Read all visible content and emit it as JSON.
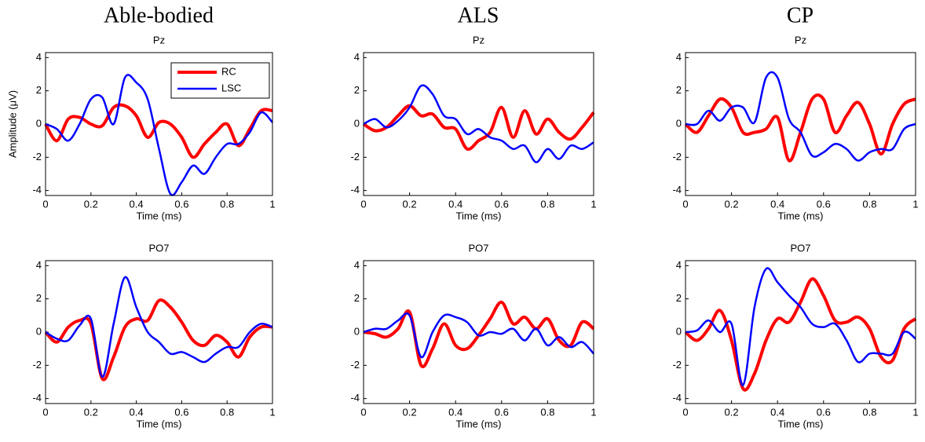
{
  "columns": [
    "Able-bodied",
    "ALS",
    "CP"
  ],
  "chart_data": [
    {
      "type": "line",
      "title": "Pz",
      "xlabel": "Time (ms)",
      "ylabel": "Amplitude (μV)",
      "legend": "upper right",
      "xlim": [
        0,
        1
      ],
      "ylim": [
        -4.3,
        4.3
      ],
      "xticks": [
        0,
        0.2,
        0.4,
        0.6,
        0.8,
        1
      ],
      "yticks": [
        -4,
        -2,
        0,
        2,
        4
      ],
      "x": [
        0,
        0.05,
        0.1,
        0.15,
        0.2,
        0.25,
        0.3,
        0.35,
        0.4,
        0.45,
        0.5,
        0.55,
        0.6,
        0.65,
        0.7,
        0.75,
        0.8,
        0.85,
        0.9,
        0.95,
        1
      ],
      "series": [
        {
          "name": "RC",
          "color": "#ff0000",
          "values": [
            0,
            -1.0,
            0.3,
            0.4,
            0,
            -0.1,
            1.0,
            1.1,
            0.5,
            -0.8,
            0.1,
            0,
            -0.8,
            -2.0,
            -1.2,
            -0.5,
            0,
            -1.3,
            -0.3,
            0.8,
            0.8
          ]
        },
        {
          "name": "LSC",
          "color": "#0000ff",
          "values": [
            0,
            -0.3,
            -1.0,
            0,
            1.5,
            1.6,
            0,
            2.8,
            2.5,
            1.5,
            -1.5,
            -4.2,
            -3.5,
            -2.5,
            -3.0,
            -2.0,
            -1.2,
            -1.2,
            -0.5,
            0.7,
            0.1
          ]
        }
      ]
    },
    {
      "type": "line",
      "title": "Pz",
      "xlabel": "Time (ms)",
      "xlim": [
        0,
        1
      ],
      "ylim": [
        -4.3,
        4.3
      ],
      "xticks": [
        0,
        0.2,
        0.4,
        0.6,
        0.8,
        1
      ],
      "yticks": [
        -4,
        -2,
        0,
        2,
        4
      ],
      "x": [
        0,
        0.05,
        0.1,
        0.15,
        0.2,
        0.25,
        0.3,
        0.35,
        0.4,
        0.45,
        0.5,
        0.55,
        0.6,
        0.65,
        0.7,
        0.75,
        0.8,
        0.85,
        0.9,
        0.95,
        1
      ],
      "series": [
        {
          "color": "#ff0000",
          "values": [
            0,
            -0.4,
            -0.2,
            0.5,
            1.1,
            0.5,
            0.6,
            -0.2,
            -0.3,
            -1.5,
            -1.0,
            -0.5,
            1.0,
            -0.8,
            0.8,
            -0.6,
            0.3,
            -0.5,
            -0.9,
            -0.2,
            0.7
          ]
        },
        {
          "color": "#0000ff",
          "values": [
            0,
            0.3,
            -0.2,
            0.2,
            1.0,
            2.3,
            1.8,
            0.5,
            0.3,
            -0.6,
            -0.3,
            -0.8,
            -1.0,
            -1.5,
            -1.3,
            -2.3,
            -1.5,
            -2.1,
            -1.3,
            -1.5,
            -1.1
          ]
        }
      ]
    },
    {
      "type": "line",
      "title": "Pz",
      "xlabel": "Time (ms)",
      "xlim": [
        0,
        1
      ],
      "ylim": [
        -4.3,
        4.3
      ],
      "xticks": [
        0,
        0.2,
        0.4,
        0.6,
        0.8,
        1
      ],
      "yticks": [
        -4,
        -2,
        0,
        2,
        4
      ],
      "x": [
        0,
        0.05,
        0.1,
        0.15,
        0.2,
        0.25,
        0.3,
        0.35,
        0.4,
        0.45,
        0.5,
        0.55,
        0.6,
        0.65,
        0.7,
        0.75,
        0.8,
        0.85,
        0.9,
        0.95,
        1
      ],
      "series": [
        {
          "color": "#ff0000",
          "values": [
            0,
            -0.5,
            0.5,
            1.5,
            1.0,
            -0.5,
            -0.5,
            -0.3,
            0.4,
            -2.2,
            -0.5,
            1.5,
            1.5,
            -0.5,
            0.5,
            1.3,
            0,
            -1.8,
            0,
            1.2,
            1.5
          ]
        },
        {
          "color": "#0000ff",
          "values": [
            0,
            0,
            0.8,
            0.2,
            1.0,
            1.0,
            0.1,
            2.8,
            2.8,
            0.3,
            -0.5,
            -1.9,
            -1.7,
            -1.2,
            -1.5,
            -2.2,
            -1.7,
            -1.5,
            -1.5,
            -0.3,
            0
          ]
        }
      ]
    },
    {
      "type": "line",
      "title": "PO7",
      "xlabel": "Time (ms)",
      "xlim": [
        0,
        1
      ],
      "ylim": [
        -4.3,
        4.3
      ],
      "xticks": [
        0,
        0.2,
        0.4,
        0.6,
        0.8,
        1
      ],
      "yticks": [
        -4,
        -2,
        0,
        2,
        4
      ],
      "x": [
        0,
        0.05,
        0.1,
        0.15,
        0.2,
        0.25,
        0.3,
        0.35,
        0.4,
        0.45,
        0.5,
        0.55,
        0.6,
        0.65,
        0.7,
        0.75,
        0.8,
        0.85,
        0.9,
        0.95,
        1
      ],
      "series": [
        {
          "color": "#ff0000",
          "values": [
            0,
            -0.6,
            0.3,
            0.7,
            0.5,
            -2.8,
            -1.5,
            0.3,
            0.8,
            0.7,
            1.9,
            1.5,
            0.6,
            -0.5,
            -0.8,
            -0.2,
            -0.6,
            -1.5,
            -0.3,
            0.3,
            0.3
          ]
        },
        {
          "color": "#0000ff",
          "values": [
            0,
            -0.4,
            -0.5,
            0.4,
            0.8,
            -2.7,
            0.5,
            3.3,
            1.5,
            0,
            -0.6,
            -1.3,
            -1.2,
            -1.5,
            -1.8,
            -1.3,
            -0.9,
            -0.9,
            0,
            0.5,
            0.3
          ]
        }
      ]
    },
    {
      "type": "line",
      "title": "PO7",
      "xlabel": "Time (ms)",
      "xlim": [
        0,
        1
      ],
      "ylim": [
        -4.3,
        4.3
      ],
      "xticks": [
        0,
        0.2,
        0.4,
        0.6,
        0.8,
        1
      ],
      "yticks": [
        -4,
        -2,
        0,
        2,
        4
      ],
      "x": [
        0,
        0.05,
        0.1,
        0.15,
        0.2,
        0.25,
        0.3,
        0.35,
        0.4,
        0.45,
        0.5,
        0.55,
        0.6,
        0.65,
        0.7,
        0.75,
        0.8,
        0.85,
        0.9,
        0.95,
        1
      ],
      "series": [
        {
          "color": "#ff0000",
          "values": [
            0,
            -0.1,
            -0.3,
            0.2,
            1.2,
            -2.0,
            -1.0,
            0.5,
            -0.8,
            -1.0,
            -0.2,
            0.8,
            1.8,
            0.5,
            0.9,
            0.2,
            0.8,
            -0.5,
            -0.8,
            0.6,
            0.2
          ]
        },
        {
          "color": "#0000ff",
          "values": [
            0,
            0.2,
            0.2,
            0.7,
            1.0,
            -1.5,
            0,
            1.0,
            0.9,
            0.6,
            -0.2,
            0,
            -0.1,
            0.2,
            -0.5,
            0.2,
            -0.8,
            -0.3,
            -0.9,
            -0.6,
            -1.3
          ]
        }
      ]
    },
    {
      "type": "line",
      "title": "PO7",
      "xlabel": "Time (ms)",
      "xlim": [
        0,
        1
      ],
      "ylim": [
        -4.3,
        4.3
      ],
      "xticks": [
        0,
        0.2,
        0.4,
        0.6,
        0.8,
        1
      ],
      "yticks": [
        -4,
        -2,
        0,
        2,
        4
      ],
      "x": [
        0,
        0.05,
        0.1,
        0.15,
        0.2,
        0.25,
        0.3,
        0.35,
        0.4,
        0.45,
        0.5,
        0.55,
        0.6,
        0.65,
        0.7,
        0.75,
        0.8,
        0.85,
        0.9,
        0.95,
        1
      ],
      "series": [
        {
          "color": "#ff0000",
          "values": [
            0,
            -0.5,
            0.2,
            1.3,
            -0.5,
            -3.4,
            -2.5,
            -0.5,
            0.8,
            0.6,
            1.8,
            3.2,
            2.2,
            0.7,
            0.6,
            0.9,
            0.2,
            -1.5,
            -1.7,
            0.2,
            0.8
          ]
        },
        {
          "color": "#0000ff",
          "values": [
            0,
            0.1,
            0.7,
            0,
            0.5,
            -3.2,
            1.5,
            3.8,
            3.0,
            2.2,
            1.5,
            0.5,
            0.3,
            0.5,
            -0.5,
            -1.8,
            -1.3,
            -1.3,
            -1.3,
            0,
            -0.4
          ]
        }
      ]
    }
  ]
}
